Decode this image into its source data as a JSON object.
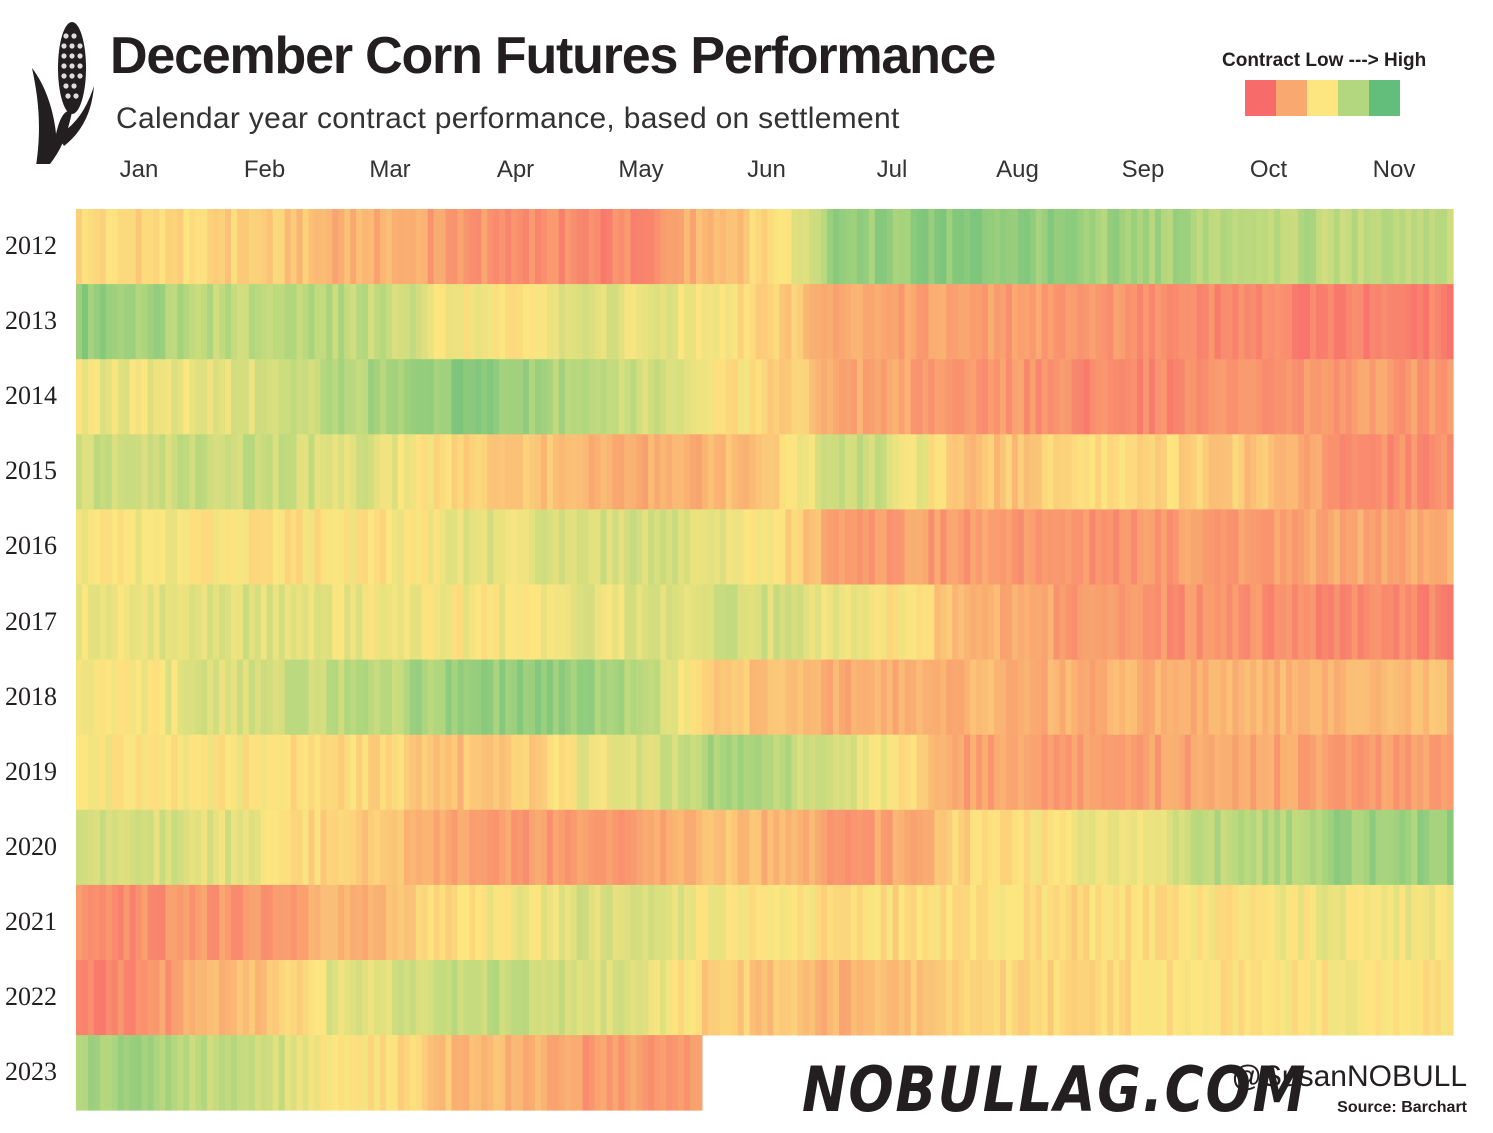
{
  "header": {
    "title": "December Corn Futures Performance",
    "subtitle": "Calendar year contract performance, based on settlement"
  },
  "legend": {
    "title": "Contract Low ---> High",
    "colors": [
      "#f86b6b",
      "#f9a870",
      "#fde680",
      "#b3d77e",
      "#63bd7b"
    ]
  },
  "footer": {
    "brand": "NOBULLAG.COM",
    "handle": "@SusanNOBULL",
    "source": "Source: Barchart"
  },
  "icons": [
    "corn-icon"
  ],
  "chart_data": {
    "type": "heatmap",
    "title": "December Corn Futures Performance",
    "subtitle": "Calendar year contract performance, based on settlement",
    "color_scale": "0 = contract low (red) to 1 = contract high (green)",
    "months": [
      "Jan",
      "Feb",
      "Mar",
      "Apr",
      "May",
      "Jun",
      "Jul",
      "Aug",
      "Sep",
      "Oct",
      "Nov"
    ],
    "series": [
      {
        "name": "2012",
        "values": [
          0.45,
          0.42,
          0.3,
          0.18,
          0.1,
          0.35,
          0.82,
          0.88,
          0.8,
          0.75,
          0.7
        ]
      },
      {
        "name": "2013",
        "values": [
          0.85,
          0.7,
          0.72,
          0.5,
          0.6,
          0.5,
          0.25,
          0.22,
          0.18,
          0.12,
          0.08
        ]
      },
      {
        "name": "2014",
        "values": [
          0.55,
          0.58,
          0.75,
          0.85,
          0.7,
          0.5,
          0.25,
          0.2,
          0.12,
          0.15,
          0.2
        ]
      },
      {
        "name": "2015",
        "values": [
          0.65,
          0.68,
          0.62,
          0.4,
          0.28,
          0.3,
          0.7,
          0.35,
          0.45,
          0.4,
          0.15
        ]
      },
      {
        "name": "2016",
        "values": [
          0.52,
          0.5,
          0.48,
          0.58,
          0.65,
          0.6,
          0.22,
          0.2,
          0.18,
          0.22,
          0.25
        ]
      },
      {
        "name": "2017",
        "values": [
          0.55,
          0.62,
          0.55,
          0.52,
          0.58,
          0.65,
          0.55,
          0.3,
          0.18,
          0.15,
          0.12
        ]
      },
      {
        "name": "2018",
        "values": [
          0.5,
          0.62,
          0.7,
          0.85,
          0.8,
          0.38,
          0.28,
          0.3,
          0.28,
          0.3,
          0.32
        ]
      },
      {
        "name": "2019",
        "values": [
          0.52,
          0.5,
          0.45,
          0.35,
          0.55,
          0.78,
          0.6,
          0.22,
          0.2,
          0.25,
          0.22
        ]
      },
      {
        "name": "2020",
        "values": [
          0.65,
          0.6,
          0.38,
          0.22,
          0.2,
          0.35,
          0.2,
          0.42,
          0.55,
          0.72,
          0.82
        ]
      },
      {
        "name": "2021",
        "values": [
          0.15,
          0.18,
          0.3,
          0.5,
          0.62,
          0.52,
          0.45,
          0.48,
          0.45,
          0.5,
          0.55
        ]
      },
      {
        "name": "2022",
        "values": [
          0.12,
          0.3,
          0.6,
          0.7,
          0.62,
          0.4,
          0.3,
          0.42,
          0.45,
          0.48,
          0.5
        ]
      },
      {
        "name": "2023",
        "values": [
          0.8,
          0.7,
          0.5,
          0.32,
          0.2,
          null,
          null,
          null,
          null,
          null,
          null
        ]
      }
    ]
  }
}
